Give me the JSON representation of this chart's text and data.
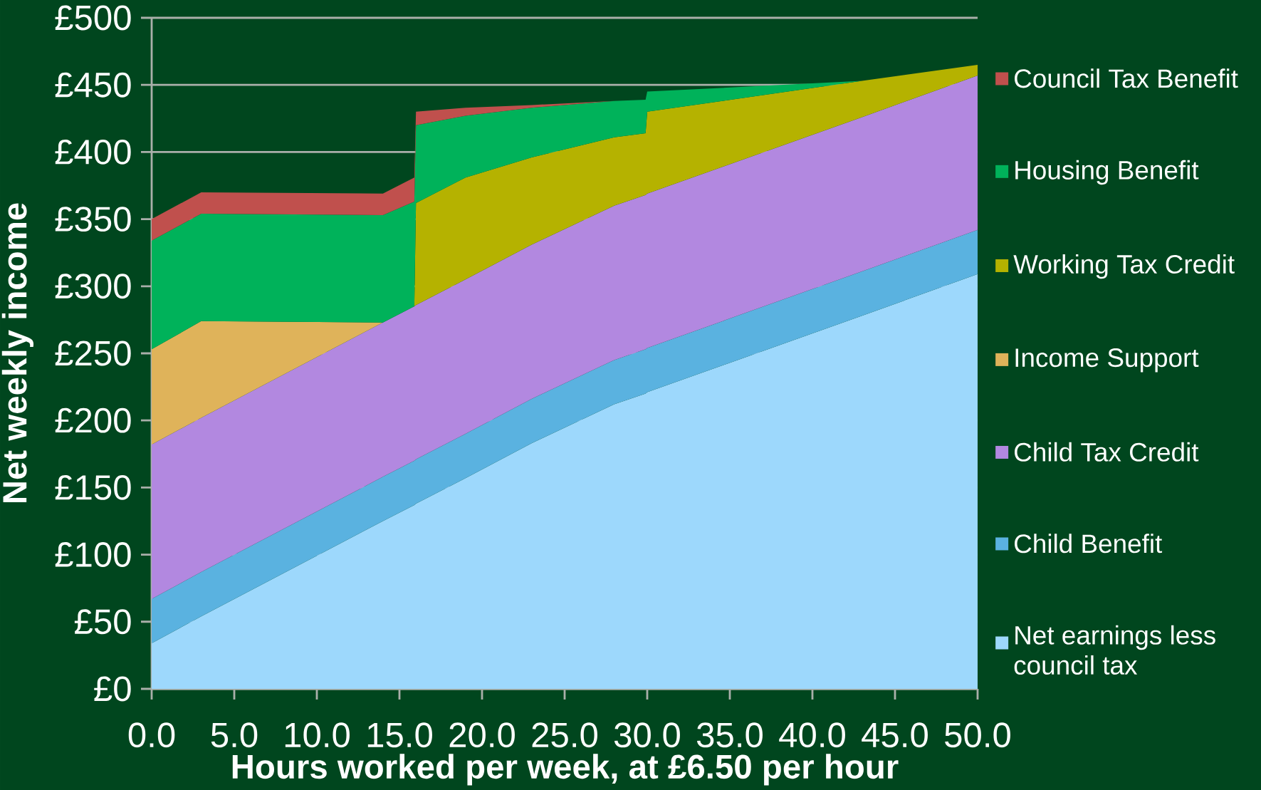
{
  "chart_data": {
    "type": "area",
    "stacked": true,
    "xlabel": "Hours worked per week, at £6.50 per hour",
    "ylabel": "Net weekly income",
    "x": [
      0,
      3,
      14,
      15.9,
      16,
      19,
      23,
      28,
      29.9,
      30,
      43,
      50
    ],
    "series": [
      {
        "name": "Net earnings less council tax",
        "color": "#9dd8fc",
        "values": [
          34,
          54,
          125,
          137,
          138,
          157,
          183,
          212,
          220,
          221,
          278,
          309
        ]
      },
      {
        "name": "Child Benefit",
        "color": "#5ab2e0",
        "values": [
          33,
          33,
          33,
          33,
          33,
          33,
          33,
          33,
          33,
          33,
          33,
          33
        ]
      },
      {
        "name": "Child Tax Credit",
        "color": "#b288e0",
        "values": [
          115,
          115,
          115,
          115,
          115,
          115,
          115,
          115,
          115,
          115,
          115,
          115
        ]
      },
      {
        "name": "Income Support",
        "color": "#dfb35a",
        "values": [
          71,
          72,
          0,
          null,
          null,
          null,
          null,
          null,
          null,
          null,
          null,
          null
        ]
      },
      {
        "name": "Working Tax Credit",
        "color": "#b5b200",
        "values": [
          null,
          null,
          null,
          0,
          76,
          76,
          65,
          51,
          46,
          61,
          27,
          8
        ]
      },
      {
        "name": "Housing Benefit",
        "color": "#00b25a",
        "values": [
          81,
          80,
          80,
          78,
          58,
          46,
          37,
          27,
          25,
          15,
          0,
          null
        ]
      },
      {
        "name": "Council Tax Benefit",
        "color": "#c0504d",
        "values": [
          16,
          16,
          16,
          18,
          10,
          6,
          2,
          0,
          null,
          null,
          null,
          null
        ]
      }
    ],
    "xlim": [
      0,
      50
    ],
    "ylim": [
      0,
      500
    ],
    "xticks": [
      {
        "value": 0,
        "label": "0.0"
      },
      {
        "value": 5,
        "label": "5.0"
      },
      {
        "value": 10,
        "label": "10.0"
      },
      {
        "value": 15,
        "label": "15.0"
      },
      {
        "value": 20,
        "label": "20.0"
      },
      {
        "value": 25,
        "label": "25.0"
      },
      {
        "value": 30,
        "label": "30.0"
      },
      {
        "value": 35,
        "label": "35.0"
      },
      {
        "value": 40,
        "label": "40.0"
      },
      {
        "value": 45,
        "label": "45.0"
      },
      {
        "value": 50,
        "label": "50.0"
      }
    ],
    "yticks": [
      {
        "value": 0,
        "label": "£0"
      },
      {
        "value": 50,
        "label": "£50"
      },
      {
        "value": 100,
        "label": "£100"
      },
      {
        "value": 150,
        "label": "£150"
      },
      {
        "value": 200,
        "label": "£200"
      },
      {
        "value": 250,
        "label": "£250"
      },
      {
        "value": 300,
        "label": "£300"
      },
      {
        "value": 350,
        "label": "£350"
      },
      {
        "value": 400,
        "label": "£400"
      },
      {
        "value": 450,
        "label": "£450"
      },
      {
        "value": 500,
        "label": "£500"
      }
    ],
    "grid": "y",
    "legend": "right"
  }
}
